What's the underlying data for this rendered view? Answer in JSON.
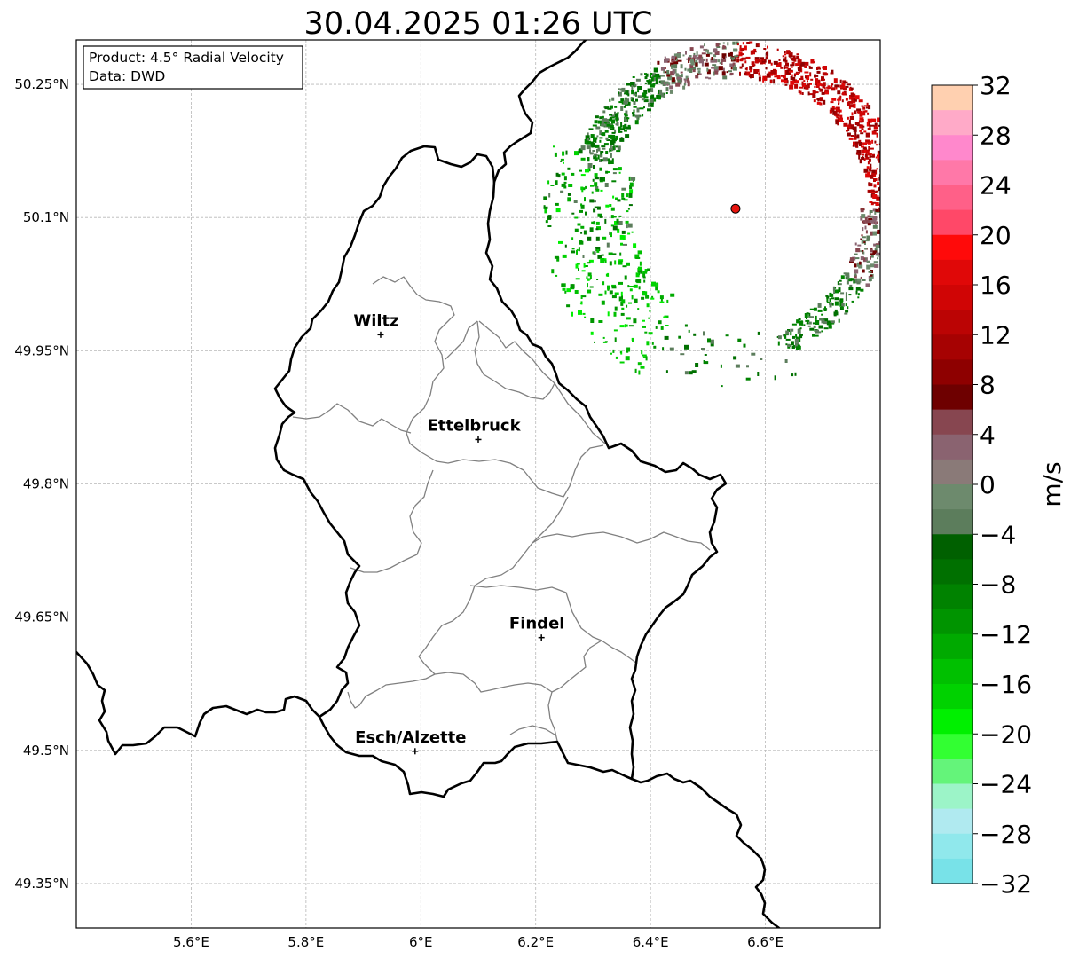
{
  "title": "30.04.2025 01:26 UTC",
  "info_box": {
    "product": "Product: 4.5° Radial Velocity",
    "source": "Data: DWD"
  },
  "map": {
    "lon_range": [
      5.4,
      6.8
    ],
    "lat_range": [
      49.3,
      50.3
    ],
    "lon_ticks": [
      {
        "value": 5.6,
        "label": "5.6°E"
      },
      {
        "value": 5.8,
        "label": "5.8°E"
      },
      {
        "value": 6.0,
        "label": "6°E"
      },
      {
        "value": 6.2,
        "label": "6.2°E"
      },
      {
        "value": 6.4,
        "label": "6.4°E"
      },
      {
        "value": 6.6,
        "label": "6.6°E"
      }
    ],
    "lat_ticks": [
      {
        "value": 50.25,
        "label": "50.25°N"
      },
      {
        "value": 50.1,
        "label": "50.1°N"
      },
      {
        "value": 49.95,
        "label": "49.95°N"
      },
      {
        "value": 49.8,
        "label": "49.8°N"
      },
      {
        "value": 49.65,
        "label": "49.65°N"
      },
      {
        "value": 49.5,
        "label": "49.5°N"
      },
      {
        "value": 49.35,
        "label": "49.35°N"
      }
    ],
    "grid": true,
    "cities": [
      {
        "name": "Wiltz",
        "lon": 5.93,
        "lat": 49.968
      },
      {
        "name": "Ettelbruck",
        "lon": 6.1,
        "lat": 49.85
      },
      {
        "name": "Findel",
        "lon": 6.21,
        "lat": 49.627
      },
      {
        "name": "Esch/Alzette",
        "lon": 5.99,
        "lat": 49.499
      }
    ],
    "radar_site": {
      "lon": 6.548,
      "lat": 50.11,
      "color": "#e8150f"
    }
  },
  "colorbar": {
    "label": "m/s",
    "min": -32,
    "max": 32,
    "ticks": [
      {
        "value": 32,
        "label": "32"
      },
      {
        "value": 28,
        "label": "28"
      },
      {
        "value": 24,
        "label": "24"
      },
      {
        "value": 20,
        "label": "20"
      },
      {
        "value": 16,
        "label": "16"
      },
      {
        "value": 12,
        "label": "12"
      },
      {
        "value": 8,
        "label": "8"
      },
      {
        "value": 4,
        "label": "4"
      },
      {
        "value": 0,
        "label": "0"
      },
      {
        "value": -4,
        "label": "−4"
      },
      {
        "value": -8,
        "label": "−8"
      },
      {
        "value": -12,
        "label": "−12"
      },
      {
        "value": -16,
        "label": "−16"
      },
      {
        "value": -20,
        "label": "−20"
      },
      {
        "value": -24,
        "label": "−24"
      },
      {
        "value": -28,
        "label": "−28"
      },
      {
        "value": -32,
        "label": "−32"
      }
    ],
    "colors_top_to_bottom": [
      "#ffd0b0",
      "#ffaac8",
      "#ff88cc",
      "#ff78a8",
      "#ff6088",
      "#ff4868",
      "#ff0a0a",
      "#e00808",
      "#d00505",
      "#bb0404",
      "#a60202",
      "#8e0000",
      "#6e0000",
      "#874650",
      "#8a6370",
      "#8a7a78",
      "#6d8a6d",
      "#5c7d5c",
      "#006000",
      "#007000",
      "#008200",
      "#009400",
      "#00aa00",
      "#00c000",
      "#00d200",
      "#00f000",
      "#32ff32",
      "#64f47a",
      "#9cf4c8",
      "#b0eaf0",
      "#90e8ec",
      "#78e2e8"
    ]
  }
}
